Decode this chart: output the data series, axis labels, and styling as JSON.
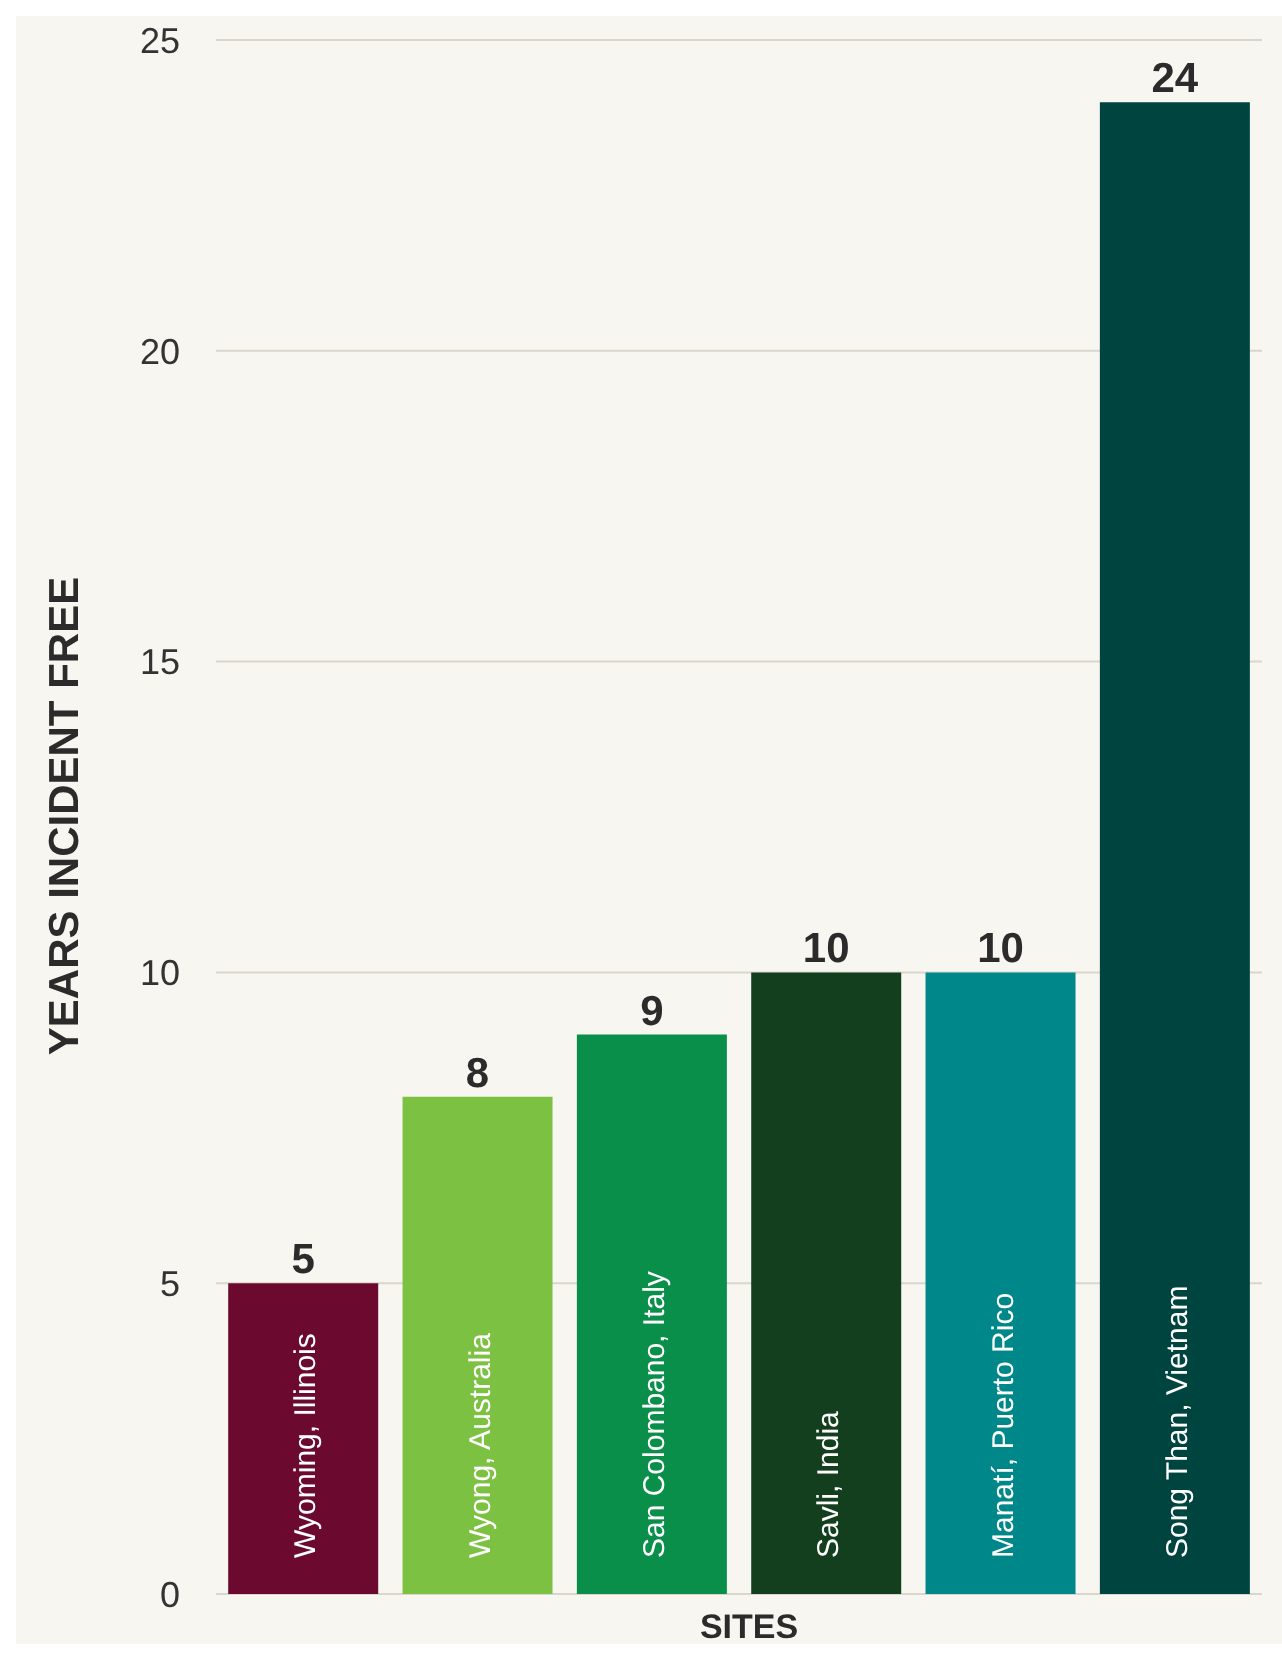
{
  "chart_data": {
    "type": "bar",
    "xlabel": "SITES",
    "ylabel": "YEARS INCIDENT FREE",
    "categories": [
      "Wyoming, Illinois",
      "Wyong, Australia",
      "San Colombano, Italy",
      "Savli, India",
      "Manatí, Puerto Rico",
      "Song Than, Vietnam"
    ],
    "values": [
      5,
      8,
      9,
      10,
      10,
      24
    ],
    "colors": [
      "#6b0a2e",
      "#7dc142",
      "#0a8f4a",
      "#133f1f",
      "#00878a",
      "#00443f"
    ],
    "ylim": [
      0,
      25
    ],
    "yticks": [
      0,
      5,
      10,
      15,
      20,
      25
    ],
    "grid": "y",
    "data_labels": true
  }
}
